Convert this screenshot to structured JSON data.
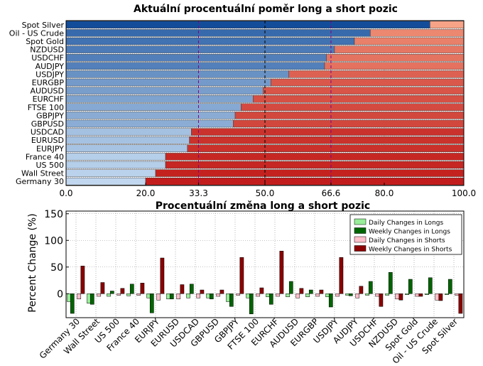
{
  "chart_data": [
    {
      "type": "bar",
      "orientation": "horizontal",
      "stacked": true,
      "title": "Aktuální procentuální poměr long a short pozic",
      "categories": [
        "Germany 30",
        "Wall Street",
        "US 500",
        "France 40",
        "EURJPY",
        "EURUSD",
        "USDCAD",
        "GBPUSD",
        "GBPJPY",
        "FTSE 100",
        "EURCHF",
        "AUDUSD",
        "EURGBP",
        "USDJPY",
        "AUDJPY",
        "USDCHF",
        "NZDUSD",
        "Spot Gold",
        "Oil - US Crude",
        "Spot Silver"
      ],
      "series": [
        {
          "name": "",
          "values": [
            20,
            22.5,
            25,
            25,
            30.5,
            31,
            31.5,
            42,
            42.5,
            44,
            47,
            49.5,
            51.5,
            56,
            65,
            65.5,
            67.5,
            72.5,
            76.5,
            91.5
          ]
        },
        {
          "name": "",
          "values": [
            80,
            77.5,
            75,
            75,
            69.5,
            69,
            68.5,
            58,
            57.5,
            56,
            53,
            50.5,
            48.5,
            44,
            35,
            34.5,
            32.5,
            27.5,
            23.5,
            8.5
          ]
        }
      ],
      "xlim": [
        0,
        100
      ],
      "xticks": [
        "0.0",
        "20.0",
        "33.3",
        "50.0",
        "66.6",
        "80.0",
        "100.0"
      ],
      "reference_lines": [
        33.3,
        50.0,
        66.6
      ],
      "grid": true
    },
    {
      "type": "bar",
      "title": "Procentuální změna long a short pozic",
      "ylabel": "Percent Change (%)",
      "ylim": [
        -45,
        155
      ],
      "yticks": [
        "0",
        "50",
        "100",
        "150"
      ],
      "legend": "top-right",
      "grid": true,
      "categories": [
        "Germany 30",
        "Wall Street",
        "US 500",
        "France 40",
        "EURJPY",
        "EURUSD",
        "USDCAD",
        "GBPUSD",
        "GBPJPY",
        "FTSE 100",
        "EURCHF",
        "AUDUSD",
        "EURGBP",
        "USDJPY",
        "AUDJPY",
        "USDCHF",
        "NZDUSD",
        "Spot Gold",
        "Oil - US Crude",
        "Spot Silver"
      ],
      "series": [
        {
          "name": "Daily Changes in Longs",
          "values": [
            -15,
            -18,
            -5,
            -4,
            -8,
            -10,
            -8,
            -8,
            -15,
            -8,
            -6,
            -6,
            -6,
            -6,
            -3,
            -3,
            -3,
            -2,
            -2,
            -2
          ]
        },
        {
          "name": "Weekly Changes in Longs",
          "values": [
            -37,
            -20,
            5,
            18,
            -36,
            -10,
            18,
            -10,
            -24,
            -38,
            -20,
            23,
            7,
            -25,
            -4,
            23,
            40,
            27,
            30,
            27
          ]
        },
        {
          "name": "Daily Changes in Shorts",
          "values": [
            -10,
            -5,
            -3,
            -3,
            -12,
            -10,
            -8,
            -5,
            -3,
            -5,
            -5,
            -8,
            -5,
            -5,
            -8,
            -5,
            -10,
            -5,
            -12,
            -3
          ]
        },
        {
          "name": "Weekly Changes in Shorts",
          "values": [
            52,
            21,
            10,
            20,
            67,
            17,
            7,
            7,
            68,
            11,
            80,
            10,
            7,
            68,
            14,
            -24,
            -12,
            -5,
            -13,
            -37
          ]
        }
      ],
      "colors": {
        "Daily Changes in Longs": "#99ee99",
        "Weekly Changes in Longs": "#006400",
        "Daily Changes in Shorts": "#ffc0cb",
        "Weekly Changes in Shorts": "#8b0000"
      }
    }
  ]
}
